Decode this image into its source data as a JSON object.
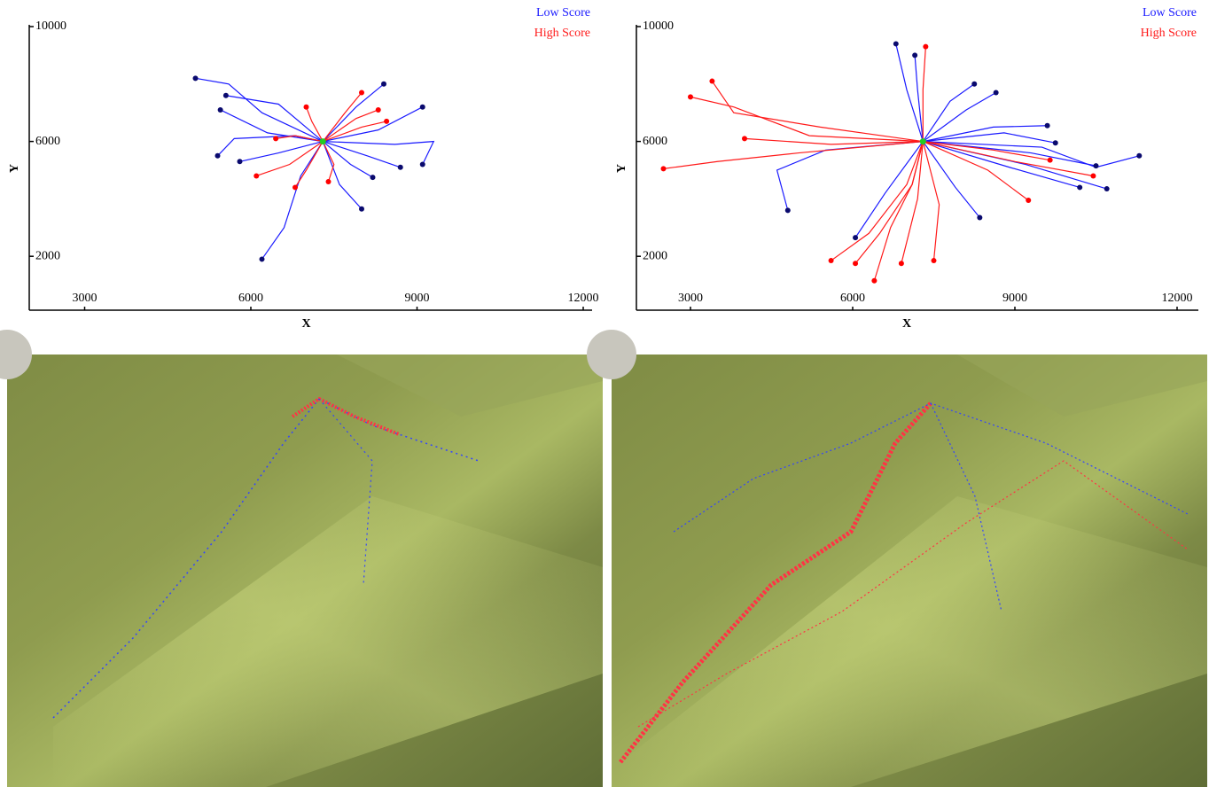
{
  "chart_data": [
    {
      "type": "trajectory",
      "xlabel": "X",
      "ylabel": "Y",
      "xlim": [
        2000,
        12000
      ],
      "ylim": [
        0,
        10000
      ],
      "xticks": [
        3000,
        6000,
        9000,
        12000
      ],
      "yticks": [
        2000,
        6000,
        10000
      ],
      "start": {
        "x": 7300,
        "y": 6000,
        "color": "#22cc22"
      },
      "series": [
        {
          "name": "Low Score",
          "color": "#1a1aff",
          "end_color": "#0a0a6e",
          "paths": [
            {
              "x": [
                7300,
                6200,
                5600,
                5000
              ],
              "y": [
                6000,
                7000,
                8000,
                8200
              ]
            },
            {
              "x": [
                7300,
                6300,
                5450
              ],
              "y": [
                6000,
                6300,
                7100
              ]
            },
            {
              "x": [
                7300,
                6500,
                5800
              ],
              "y": [
                6000,
                5600,
                5300
              ]
            },
            {
              "x": [
                7300,
                6900,
                6600,
                6200
              ],
              "y": [
                6000,
                4800,
                3000,
                1900
              ]
            },
            {
              "x": [
                7300,
                7900,
                8400
              ],
              "y": [
                6000,
                7200,
                8000
              ]
            },
            {
              "x": [
                7300,
                8300,
                9100
              ],
              "y": [
                6000,
                6400,
                7200
              ]
            },
            {
              "x": [
                7300,
                8600,
                9300,
                9100
              ],
              "y": [
                6000,
                5900,
                6000,
                5200
              ]
            },
            {
              "x": [
                7300,
                8100,
                8700
              ],
              "y": [
                6000,
                5500,
                5100
              ]
            },
            {
              "x": [
                7300,
                7600,
                8000
              ],
              "y": [
                6000,
                4500,
                3650
              ]
            },
            {
              "x": [
                7300,
                7800,
                8200
              ],
              "y": [
                6000,
                5200,
                4750
              ]
            },
            {
              "x": [
                7300,
                6500,
                5550
              ],
              "y": [
                6000,
                7300,
                7600
              ]
            },
            {
              "x": [
                7300,
                6800,
                5700,
                5400
              ],
              "y": [
                6000,
                6200,
                6100,
                5500
              ]
            }
          ]
        },
        {
          "name": "High Score",
          "color": "#ff1a1a",
          "end_color": "#ff0000",
          "paths": [
            {
              "x": [
                7300,
                6700,
                6100
              ],
              "y": [
                6000,
                5200,
                4800
              ]
            },
            {
              "x": [
                7300,
                7000,
                6800
              ],
              "y": [
                6000,
                5000,
                4400
              ]
            },
            {
              "x": [
                7300,
                7700,
                8000
              ],
              "y": [
                6000,
                7000,
                7700
              ]
            },
            {
              "x": [
                7300,
                7900,
                8300
              ],
              "y": [
                6000,
                6800,
                7100
              ]
            },
            {
              "x": [
                7300,
                8000,
                8450
              ],
              "y": [
                6000,
                6500,
                6700
              ]
            },
            {
              "x": [
                7300,
                7100,
                7000
              ],
              "y": [
                6000,
                6700,
                7200
              ]
            },
            {
              "x": [
                7300,
                6800,
                6450
              ],
              "y": [
                6000,
                6200,
                6100
              ]
            },
            {
              "x": [
                7300,
                7500,
                7400
              ],
              "y": [
                6000,
                5200,
                4600
              ]
            }
          ]
        }
      ]
    },
    {
      "type": "trajectory",
      "xlabel": "X",
      "ylabel": "Y",
      "xlim": [
        2000,
        12000
      ],
      "ylim": [
        0,
        10000
      ],
      "xticks": [
        3000,
        6000,
        9000,
        12000
      ],
      "yticks": [
        2000,
        6000,
        10000
      ],
      "start": {
        "x": 7300,
        "y": 6000,
        "color": "#22cc22"
      },
      "series": [
        {
          "name": "Low Score",
          "color": "#1a1aff",
          "end_color": "#0a0a6e",
          "paths": [
            {
              "x": [
                7300,
                9500,
                10500,
                11300
              ],
              "y": [
                6000,
                5800,
                5100,
                5500
              ]
            },
            {
              "x": [
                7300,
                9200,
                10700
              ],
              "y": [
                6000,
                5200,
                4350
              ]
            },
            {
              "x": [
                7300,
                8900,
                10200
              ],
              "y": [
                6000,
                5100,
                4400
              ]
            },
            {
              "x": [
                7300,
                9300,
                10500
              ],
              "y": [
                6000,
                5600,
                5150
              ]
            },
            {
              "x": [
                7300,
                8800,
                9750
              ],
              "y": [
                6000,
                6300,
                5950
              ]
            },
            {
              "x": [
                7300,
                8600,
                9600
              ],
              "y": [
                6000,
                6500,
                6550
              ]
            },
            {
              "x": [
                7300,
                8100,
                8650
              ],
              "y": [
                6000,
                7100,
                7700
              ]
            },
            {
              "x": [
                7300,
                7800,
                8250
              ],
              "y": [
                6000,
                7400,
                8000
              ]
            },
            {
              "x": [
                7300,
                7000,
                6800
              ],
              "y": [
                6000,
                7800,
                9400
              ]
            },
            {
              "x": [
                7300,
                5500,
                4600,
                4800
              ],
              "y": [
                6000,
                5700,
                5000,
                3600
              ]
            },
            {
              "x": [
                7300,
                6600,
                6050
              ],
              "y": [
                6000,
                4200,
                2650
              ]
            },
            {
              "x": [
                7300,
                7900,
                8350
              ],
              "y": [
                6000,
                4400,
                3350
              ]
            },
            {
              "x": [
                7300,
                7200,
                7150
              ],
              "y": [
                6000,
                7800,
                9000
              ]
            }
          ]
        },
        {
          "name": "High Score",
          "color": "#ff1a1a",
          "end_color": "#ff0000",
          "paths": [
            {
              "x": [
                7300,
                5000,
                3500,
                2500
              ],
              "y": [
                6000,
                5600,
                5300,
                5050
              ]
            },
            {
              "x": [
                7300,
                5200,
                3800,
                3000
              ],
              "y": [
                6000,
                6200,
                7200,
                7550
              ]
            },
            {
              "x": [
                7300,
                5400,
                3800,
                3400
              ],
              "y": [
                6000,
                6500,
                7000,
                8100
              ]
            },
            {
              "x": [
                7300,
                5600,
                4000
              ],
              "y": [
                6000,
                5900,
                6100
              ]
            },
            {
              "x": [
                7300,
                7300,
                7350
              ],
              "y": [
                6000,
                7800,
                9300
              ]
            },
            {
              "x": [
                7300,
                7000,
                6300,
                5600
              ],
              "y": [
                6000,
                4500,
                2800,
                1850
              ]
            },
            {
              "x": [
                7300,
                7100,
                6500,
                6050
              ],
              "y": [
                6000,
                4500,
                2800,
                1750
              ]
            },
            {
              "x": [
                7300,
                7100,
                6700,
                6400
              ],
              "y": [
                6000,
                4500,
                3000,
                1150
              ]
            },
            {
              "x": [
                7300,
                7200,
                6900
              ],
              "y": [
                6000,
                4000,
                1750
              ]
            },
            {
              "x": [
                7300,
                8500,
                9250
              ],
              "y": [
                6000,
                5000,
                3950
              ]
            },
            {
              "x": [
                7300,
                9000,
                10450
              ],
              "y": [
                6000,
                5300,
                4800
              ]
            },
            {
              "x": [
                7300,
                8600,
                9650
              ],
              "y": [
                6000,
                5700,
                5350
              ]
            },
            {
              "x": [
                7300,
                7600,
                7500
              ],
              "y": [
                6000,
                3800,
                1850
              ]
            }
          ]
        }
      ]
    }
  ]
}
